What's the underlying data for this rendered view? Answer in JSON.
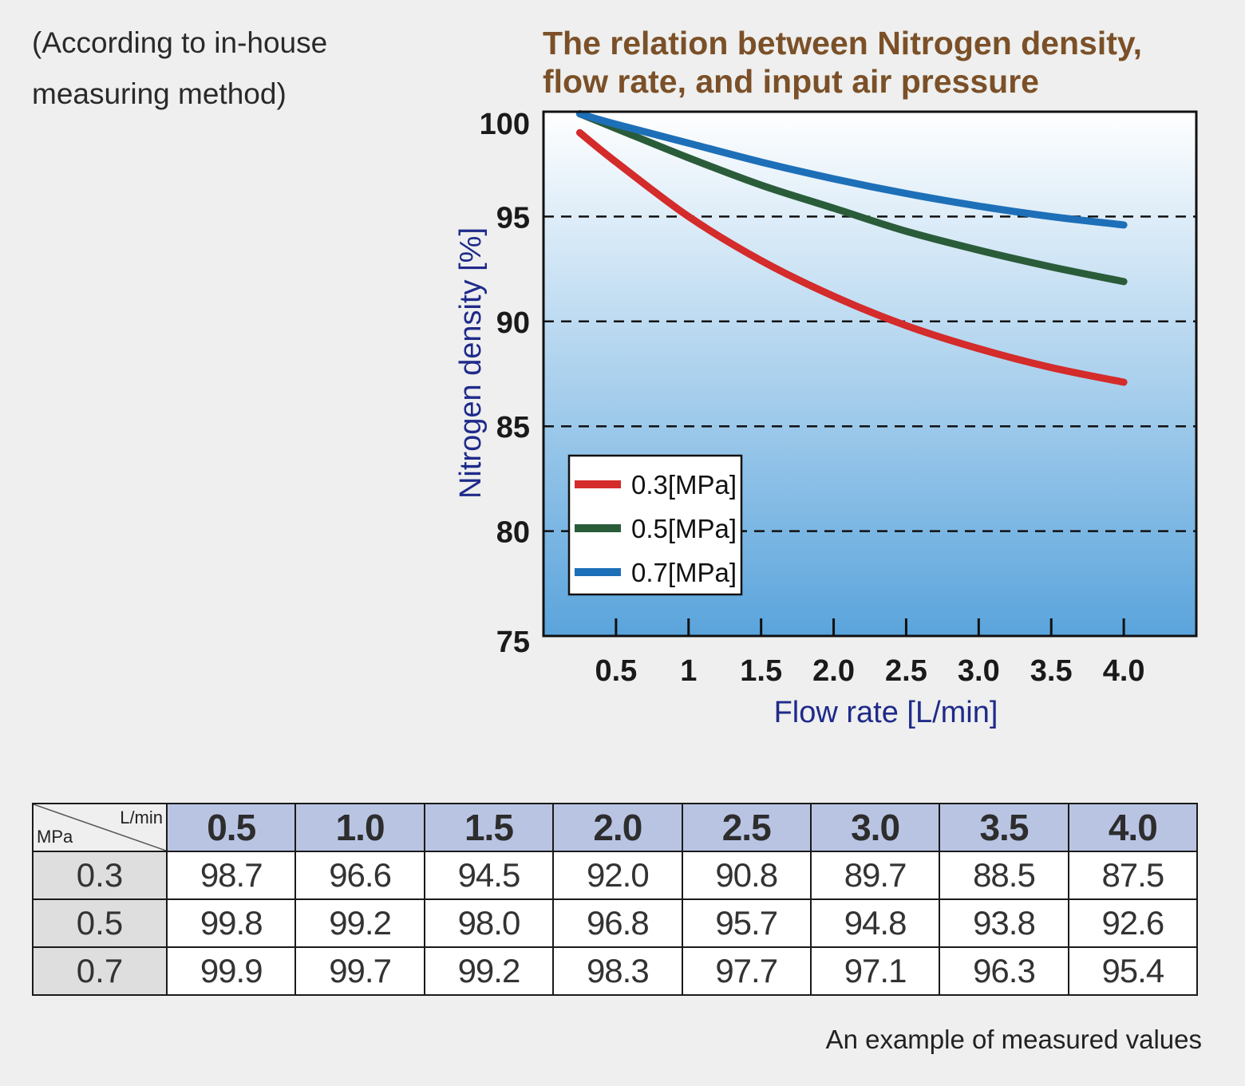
{
  "note": {
    "line1": "(According to in-house",
    "line2": "measuring method)"
  },
  "footer_note": "An example of measured values",
  "table": {
    "corner_top": "L/min",
    "corner_bottom": "MPa",
    "columns": [
      "0.5",
      "1.0",
      "1.5",
      "2.0",
      "2.5",
      "3.0",
      "3.5",
      "4.0"
    ],
    "rows": [
      {
        "label": "0.3",
        "values": [
          "98.7",
          "96.6",
          "94.5",
          "92.0",
          "90.8",
          "89.7",
          "88.5",
          "87.5"
        ]
      },
      {
        "label": "0.5",
        "values": [
          "99.8",
          "99.2",
          "98.0",
          "96.8",
          "95.7",
          "94.8",
          "93.8",
          "92.6"
        ]
      },
      {
        "label": "0.7",
        "values": [
          "99.9",
          "99.7",
          "99.2",
          "98.3",
          "97.7",
          "97.1",
          "96.3",
          "95.4"
        ]
      }
    ]
  },
  "chart_data": {
    "type": "line",
    "title_line1": "The relation between Nitrogen density,",
    "title_line2": "flow rate, and input air pressure",
    "xlabel": "Flow rate [L/min]",
    "ylabel": "Nitrogen density [%]",
    "x_ticks": [
      "0.5",
      "1",
      "1.5",
      "2.0",
      "2.5",
      "3.0",
      "3.5",
      "4.0"
    ],
    "x_tick_values": [
      0.5,
      1.0,
      1.5,
      2.0,
      2.5,
      3.0,
      3.5,
      4.0
    ],
    "y_ticks": [
      100,
      95,
      90,
      85,
      80,
      75
    ],
    "xlim": [
      0,
      4.5
    ],
    "ylim": [
      75,
      100
    ],
    "gridlines_y": [
      95,
      90,
      85,
      80
    ],
    "legend_position": "lower-left",
    "series": [
      {
        "name": "0.3[MPa]",
        "color": "#d42b2b",
        "x": [
          0.25,
          0.5,
          1.0,
          1.5,
          2.0,
          2.5,
          3.0,
          3.5,
          4.0
        ],
        "y": [
          99.0,
          97.6,
          95.0,
          92.9,
          91.2,
          89.8,
          88.7,
          87.8,
          87.1
        ]
      },
      {
        "name": "0.5[MPa]",
        "color": "#2a5c3a",
        "x": [
          0.25,
          0.5,
          1.0,
          1.5,
          2.0,
          2.5,
          3.0,
          3.5,
          4.0
        ],
        "y": [
          99.9,
          99.2,
          97.8,
          96.5,
          95.4,
          94.3,
          93.4,
          92.6,
          91.9
        ]
      },
      {
        "name": "0.7[MPa]",
        "color": "#1d6fb8",
        "x": [
          0.25,
          0.5,
          1.0,
          1.5,
          2.0,
          2.5,
          3.0,
          3.5,
          4.0
        ],
        "y": [
          99.9,
          99.4,
          98.5,
          97.6,
          96.8,
          96.1,
          95.5,
          95.0,
          94.6
        ]
      }
    ]
  }
}
